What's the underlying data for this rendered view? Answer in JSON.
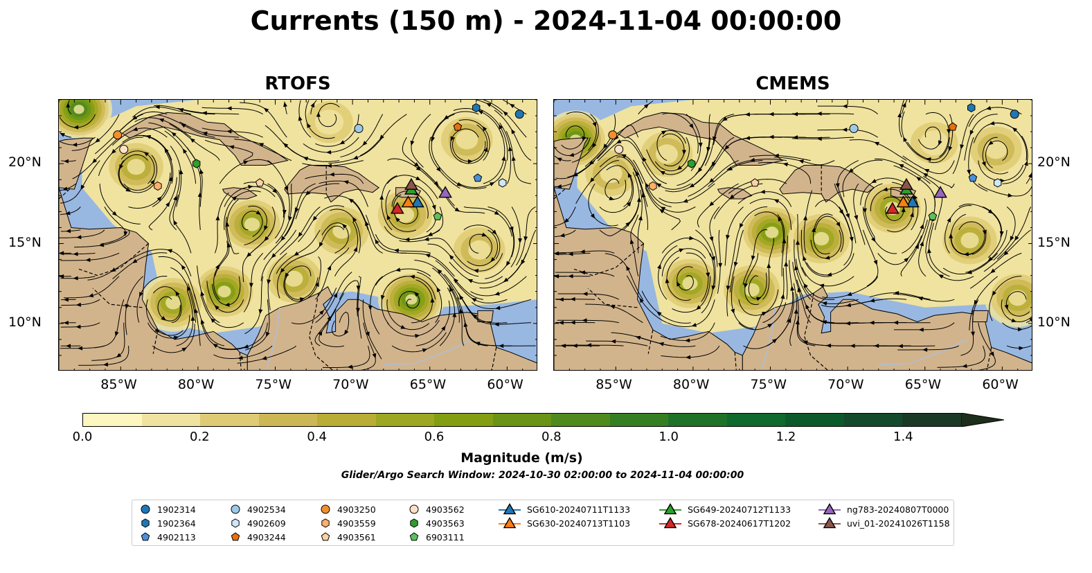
{
  "title": "Currents (150 m) - 2024-11-04 00:00:00",
  "panels": [
    {
      "title": "RTOFS",
      "model": "rtofs"
    },
    {
      "title": "CMEMS",
      "model": "cmems"
    }
  ],
  "map": {
    "lon_range": [
      -89,
      -58
    ],
    "lat_range": [
      7,
      24
    ],
    "lon_ticks": [
      "85°W",
      "80°W",
      "75°W",
      "70°W",
      "65°W",
      "60°W"
    ],
    "lon_tick_values": [
      -85,
      -80,
      -75,
      -70,
      -65,
      -60
    ],
    "lat_ticks": [
      "20°N",
      "15°N",
      "10°N"
    ],
    "lat_tick_values": [
      20,
      15,
      10
    ],
    "land_color": "#d2b48c",
    "ocean_color": "#98b8e2"
  },
  "colorbar": {
    "label": "Magnitude (m/s)",
    "min": 0.0,
    "max": 1.5,
    "ticks": [
      "0.0",
      "0.2",
      "0.4",
      "0.6",
      "0.8",
      "1.0",
      "1.2",
      "1.4"
    ],
    "tick_values": [
      0.0,
      0.2,
      0.4,
      0.6,
      0.8,
      1.0,
      1.2,
      1.4
    ],
    "colors": [
      "#fdf6c0",
      "#f0e39f",
      "#dfcb73",
      "#cdb755",
      "#b9ad36",
      "#9da722",
      "#849e12",
      "#6a9416",
      "#4f8a1e",
      "#357f22",
      "#1f7328",
      "#0f6a2d",
      "#0c5a2c",
      "#15492b",
      "#1a3a25",
      "#1e2e1c"
    ],
    "extend": "max"
  },
  "search_window": "Glider/Argo Search Window: 2024-10-30 02:00:00 to 2024-11-04 00:00:00",
  "legend": {
    "items": [
      {
        "label": "1902314",
        "marker": "circle",
        "color": "#1f77b4"
      },
      {
        "label": "1902364",
        "marker": "hexagon",
        "color": "#1f77b4"
      },
      {
        "label": "4902113",
        "marker": "pentagon",
        "color": "#4a90d9"
      },
      {
        "label": "4902534",
        "marker": "circle",
        "color": "#9ecae9"
      },
      {
        "label": "4902609",
        "marker": "hexagon",
        "color": "#cfe6f6"
      },
      {
        "label": "4903244",
        "marker": "pentagon",
        "color": "#e5700f"
      },
      {
        "label": "4903250",
        "marker": "circle",
        "color": "#f28e2b"
      },
      {
        "label": "4903559",
        "marker": "hexagon",
        "color": "#ffae6b"
      },
      {
        "label": "4903561",
        "marker": "pentagon",
        "color": "#ffd1a3"
      },
      {
        "label": "4903562",
        "marker": "circle",
        "color": "#fde0c8"
      },
      {
        "label": "4903563",
        "marker": "hexagon",
        "color": "#2ca02c"
      },
      {
        "label": "6903111",
        "marker": "pentagon",
        "color": "#5cc05c"
      },
      {
        "label": "SG610-20240711T1133",
        "marker": "triangle",
        "color": "#1f77b4"
      },
      {
        "label": "SG630-20240713T1103",
        "marker": "triangle",
        "color": "#ff7f0e"
      },
      {
        "label": "SG649-20240712T1133",
        "marker": "triangle",
        "color": "#2ca02c"
      },
      {
        "label": "SG678-20240617T1202",
        "marker": "triangle",
        "color": "#d62728"
      },
      {
        "label": "ng783-20240807T0000",
        "marker": "triangle",
        "color": "#9467bd"
      },
      {
        "label": "uvi_01-20241026T1158",
        "marker": "triangle",
        "color": "#8c564b"
      }
    ]
  },
  "positions": {
    "rtofs": [
      {
        "label": "1902314",
        "lon": -59.2,
        "lat": 23.1
      },
      {
        "label": "1902364",
        "lon": -62.0,
        "lat": 23.5
      },
      {
        "label": "4902113",
        "lon": -61.9,
        "lat": 19.1
      },
      {
        "label": "4902534",
        "lon": -69.6,
        "lat": 22.2
      },
      {
        "label": "4902609",
        "lon": -60.3,
        "lat": 18.8
      },
      {
        "label": "4903244",
        "lon": -63.2,
        "lat": 22.3
      },
      {
        "label": "4903250",
        "lon": -85.2,
        "lat": 21.8
      },
      {
        "label": "4903559",
        "lon": -82.6,
        "lat": 18.6
      },
      {
        "label": "4903561",
        "lon": -76.0,
        "lat": 18.8
      },
      {
        "label": "4903562",
        "lon": -84.8,
        "lat": 20.9
      },
      {
        "label": "4903563",
        "lon": -80.1,
        "lat": 20.0
      },
      {
        "label": "6903111",
        "lon": -64.5,
        "lat": 16.7
      },
      {
        "label": "SG610-20240711T1133",
        "lon": -65.8,
        "lat": 17.6
      },
      {
        "label": "SG630-20240713T1103",
        "lon": -66.4,
        "lat": 17.6
      },
      {
        "label": "SG649-20240712T1133",
        "lon": -66.2,
        "lat": 18.4
      },
      {
        "label": "SG678-20240617T1202",
        "lon": -67.1,
        "lat": 17.2
      },
      {
        "label": "ng783-20240807T0000",
        "lon": -64.0,
        "lat": 18.2
      },
      {
        "label": "uvi_01-20241026T1158",
        "lon": -66.2,
        "lat": 18.7
      }
    ],
    "cmems": [
      {
        "label": "1902314",
        "lon": -59.2,
        "lat": 23.1
      },
      {
        "label": "1902364",
        "lon": -62.0,
        "lat": 23.5
      },
      {
        "label": "4902113",
        "lon": -61.9,
        "lat": 19.1
      },
      {
        "label": "4902534",
        "lon": -69.6,
        "lat": 22.2
      },
      {
        "label": "4902609",
        "lon": -60.3,
        "lat": 18.8
      },
      {
        "label": "4903244",
        "lon": -63.2,
        "lat": 22.3
      },
      {
        "label": "4903250",
        "lon": -85.2,
        "lat": 21.8
      },
      {
        "label": "4903559",
        "lon": -82.6,
        "lat": 18.6
      },
      {
        "label": "4903561",
        "lon": -76.0,
        "lat": 18.8
      },
      {
        "label": "4903562",
        "lon": -84.8,
        "lat": 20.9
      },
      {
        "label": "4903563",
        "lon": -80.1,
        "lat": 20.0
      },
      {
        "label": "6903111",
        "lon": -64.5,
        "lat": 16.7
      },
      {
        "label": "SG610-20240711T1133",
        "lon": -65.8,
        "lat": 17.6
      },
      {
        "label": "SG630-20240713T1103",
        "lon": -66.4,
        "lat": 17.6
      },
      {
        "label": "SG649-20240712T1133",
        "lon": -66.2,
        "lat": 18.4
      },
      {
        "label": "SG678-20240617T1202",
        "lon": -67.1,
        "lat": 17.2
      },
      {
        "label": "ng783-20240807T0000",
        "lon": -64.0,
        "lat": 18.2
      },
      {
        "label": "uvi_01-20241026T1158",
        "lon": -66.2,
        "lat": 18.7
      }
    ]
  },
  "eddies": {
    "rtofs": [
      {
        "lon": -84,
        "lat": 19.8,
        "speed": 0.5
      },
      {
        "lon": -76.5,
        "lat": 16.2,
        "speed": 0.6
      },
      {
        "lon": -73.8,
        "lat": 12.8,
        "speed": 0.5
      },
      {
        "lon": -78.3,
        "lat": 12.0,
        "speed": 0.7
      },
      {
        "lon": -81.6,
        "lat": 11.3,
        "speed": 0.6
      },
      {
        "lon": -66.6,
        "lat": 16.8,
        "speed": 0.5
      },
      {
        "lon": -70.7,
        "lat": 15.8,
        "speed": 0.45
      },
      {
        "lon": -61.8,
        "lat": 14.6,
        "speed": 0.4
      },
      {
        "lon": -66.2,
        "lat": 11.5,
        "speed": 0.75
      },
      {
        "lon": -87.7,
        "lat": 23.4,
        "speed": 0.85
      },
      {
        "lon": -62.6,
        "lat": 21.5,
        "speed": 0.35
      },
      {
        "lon": -71.5,
        "lat": 22.6,
        "speed": 0.3
      }
    ],
    "cmems": [
      {
        "lon": -74.9,
        "lat": 15.7,
        "speed": 0.65
      },
      {
        "lon": -71.7,
        "lat": 15.3,
        "speed": 0.55
      },
      {
        "lon": -76.2,
        "lat": 12.1,
        "speed": 0.55
      },
      {
        "lon": -80.2,
        "lat": 12.5,
        "speed": 0.55
      },
      {
        "lon": -67.1,
        "lat": 17.2,
        "speed": 0.6
      },
      {
        "lon": -62.1,
        "lat": 15.2,
        "speed": 0.5
      },
      {
        "lon": -85.3,
        "lat": 19.4,
        "speed": 0.4
      },
      {
        "lon": -81.7,
        "lat": 20.6,
        "speed": 0.35
      },
      {
        "lon": -60.4,
        "lat": 20.9,
        "speed": 0.4
      },
      {
        "lon": -64.4,
        "lat": 21.3,
        "speed": 0.3
      },
      {
        "lon": -59.0,
        "lat": 11.6,
        "speed": 0.5
      },
      {
        "lon": -87.6,
        "lat": 21.5,
        "speed": 0.8
      }
    ]
  }
}
